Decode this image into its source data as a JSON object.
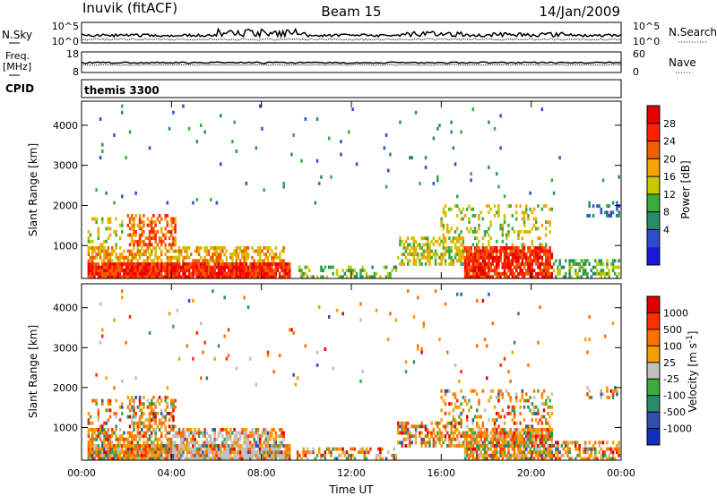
{
  "header": {
    "station": "Inuvik (fitACF)",
    "beam": "Beam 15",
    "date": "14/Jan/2009"
  },
  "chart_data": [
    {
      "type": "line",
      "panel": "noise-sky-search",
      "ylabel_left": "N.Sky",
      "ylabel_right": "N.Search",
      "left_ticks": [
        "10^5",
        "10^0"
      ],
      "right_ticks": [
        "10^5",
        "10^0"
      ],
      "x_range_hours": [
        0,
        24
      ]
    },
    {
      "type": "line",
      "panel": "frequency-nave",
      "ylabel_left": "Freq.",
      "ylabel_left_unit": "[MHz]",
      "ylabel_right": "Nave",
      "left_ticks": [
        "18",
        "8"
      ],
      "right_ticks": [
        "60",
        "0"
      ],
      "x_range_hours": [
        0,
        24
      ]
    },
    {
      "type": "table",
      "panel": "cpid",
      "label": "CPID",
      "program": "themis 3300"
    },
    {
      "type": "heatmap",
      "panel": "power",
      "ylabel": "Slant Range [km]",
      "y_ticks": [
        1000,
        2000,
        3000,
        4000
      ],
      "ylim": [
        180,
        4600
      ],
      "colorbar_label": "Power [dB]",
      "colorbar_ticks": [
        "28",
        "24",
        "20",
        "16",
        "12",
        "8",
        "4"
      ],
      "colors": [
        "#1a1adc",
        "#2a4fc8",
        "#2a8a6a",
        "#3caa3c",
        "#c8c800",
        "#f5a500",
        "#f06000",
        "#ff2000",
        "#e80000"
      ]
    },
    {
      "type": "heatmap",
      "panel": "velocity",
      "ylabel": "Slant Range [km]",
      "y_ticks": [
        1000,
        2000,
        3000,
        4000
      ],
      "ylim": [
        180,
        4600
      ],
      "colorbar_label": "Velocity [m s",
      "colorbar_label_sup": "-1",
      "colorbar_label_end": "]",
      "colorbar_ticks": [
        "1000",
        "500",
        "100",
        "25",
        "-25",
        "-100",
        "-500",
        "-1000"
      ],
      "colors": [
        "#1030c0",
        "#3050b0",
        "#2a8a6a",
        "#3caa3c",
        "#c0c0c0",
        "#f5a000",
        "#ff7000",
        "#ff3000",
        "#e00000"
      ],
      "x_ticks": [
        "00:00",
        "04:00",
        "08:00",
        "12:00",
        "16:00",
        "20:00",
        "00:00"
      ],
      "xlabel": "Time UT"
    }
  ]
}
